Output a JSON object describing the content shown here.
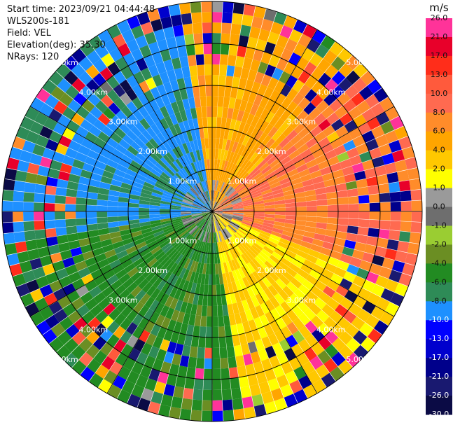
{
  "info": {
    "start_time": "Start time: 2023/09/21 04:44:48",
    "device": "WLS200s-181",
    "field": "Field: VEL",
    "elevation": "Elevation(deg): 35.30",
    "nrays": "NRays: 120"
  },
  "chart_data": {
    "type": "heatmap",
    "projection": "polar-ppi",
    "quantity": "radial velocity",
    "rays": 120,
    "max_range_km": 5.0,
    "range_rings_km": [
      1,
      2,
      3,
      4,
      5
    ],
    "ring_labels": [
      "1.00km",
      "2.00km",
      "3.00km",
      "4.00km",
      "5.00km"
    ],
    "colorbar": {
      "unit": "m/s",
      "min": -30.0,
      "max": 26.0,
      "ticks": [
        "26.0",
        "21.0",
        "17.0",
        "13.0",
        "10.0",
        "8.0",
        "6.0",
        "4.0",
        "2.0",
        "1.0",
        "0.0",
        "-1.0",
        "-2.0",
        "-4.0",
        "-6.0",
        "-8.0",
        "-10.0",
        "-13.0",
        "-17.0",
        "-21.0",
        "-26.0",
        "-30.0"
      ],
      "bins": [
        {
          "low": 21,
          "high": 26,
          "color": "#ff3399"
        },
        {
          "low": 17,
          "high": 21,
          "color": "#e8002a"
        },
        {
          "low": 13,
          "high": 17,
          "color": "#ff2d1a"
        },
        {
          "low": 10,
          "high": 13,
          "color": "#ff5a3c"
        },
        {
          "low": 8,
          "high": 10,
          "color": "#ff6a50"
        },
        {
          "low": 6,
          "high": 8,
          "color": "#ff8c2a"
        },
        {
          "low": 4,
          "high": 6,
          "color": "#ffa500"
        },
        {
          "low": 2,
          "high": 4,
          "color": "#ffc800"
        },
        {
          "low": 1,
          "high": 2,
          "color": "#ffff00"
        },
        {
          "low": 0,
          "high": 1,
          "color": "#9a9a9a"
        },
        {
          "low": -1,
          "high": 0,
          "color": "#6e6e6e"
        },
        {
          "low": -2,
          "high": -1,
          "color": "#9acd32"
        },
        {
          "low": -4,
          "high": -2,
          "color": "#6b8e23"
        },
        {
          "low": -6,
          "high": -4,
          "color": "#228b22"
        },
        {
          "low": -8,
          "high": -6,
          "color": "#2e8b57"
        },
        {
          "low": -10,
          "high": -8,
          "color": "#1e90ff"
        },
        {
          "low": -13,
          "high": -10,
          "color": "#0000ff"
        },
        {
          "low": -17,
          "high": -13,
          "color": "#0000cd"
        },
        {
          "low": -21,
          "high": -17,
          "color": "#00008b"
        },
        {
          "low": -26,
          "high": -21,
          "color": "#191970"
        },
        {
          "low": -30,
          "high": -26,
          "color": "#0b0b45"
        }
      ]
    },
    "sectors": [
      {
        "az_from": 350,
        "az_to": 45,
        "velocity_ms": 5.0
      },
      {
        "az_from": 45,
        "az_to": 110,
        "velocity_ms": 8.0
      },
      {
        "az_from": 110,
        "az_to": 170,
        "velocity_ms": 2.5
      },
      {
        "az_from": 170,
        "az_to": 260,
        "velocity_ms": -5.0
      },
      {
        "az_from": 260,
        "az_to": 350,
        "velocity_ms": -8.5
      }
    ]
  }
}
